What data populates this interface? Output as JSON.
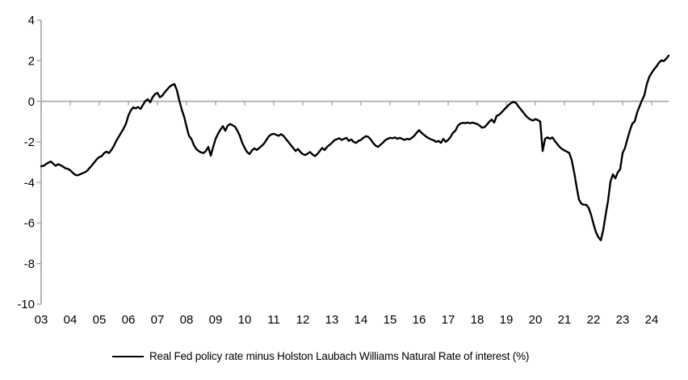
{
  "chart_data": {
    "type": "line",
    "title": "",
    "xlabel": "",
    "ylabel": "",
    "grid": false,
    "legend_position": "bottom",
    "ylim": [
      -10,
      4
    ],
    "y_ticks": [
      4,
      2,
      0,
      -2,
      -4,
      -6,
      -8,
      -10
    ],
    "y_tick_labels": [
      "4",
      "2",
      "0",
      "-2",
      "-4",
      "-6",
      "-8",
      "-10"
    ],
    "x_tick_years": [
      2003,
      2004,
      2005,
      2006,
      2007,
      2008,
      2009,
      2010,
      2011,
      2012,
      2013,
      2014,
      2015,
      2016,
      2017,
      2018,
      2019,
      2020,
      2021,
      2022,
      2023,
      2024
    ],
    "x_tick_labels": [
      "03",
      "04",
      "05",
      "06",
      "07",
      "08",
      "09",
      "10",
      "11",
      "12",
      "13",
      "14",
      "15",
      "16",
      "17",
      "18",
      "19",
      "20",
      "21",
      "22",
      "23",
      "24"
    ],
    "zero_axis_line": true,
    "series": [
      {
        "name": "Real Fed policy rate minus Holston Laubach Williams Natural Rate of interest (%)",
        "color": "#000000",
        "x_start": 2003.0,
        "x_step": 0.0833333,
        "values": [
          -3.2,
          -3.18,
          -3.1,
          -3.02,
          -2.97,
          -3.08,
          -3.18,
          -3.1,
          -3.15,
          -3.22,
          -3.3,
          -3.33,
          -3.4,
          -3.52,
          -3.62,
          -3.65,
          -3.6,
          -3.55,
          -3.5,
          -3.42,
          -3.28,
          -3.15,
          -3.0,
          -2.85,
          -2.75,
          -2.7,
          -2.55,
          -2.48,
          -2.55,
          -2.4,
          -2.2,
          -1.95,
          -1.75,
          -1.55,
          -1.35,
          -1.1,
          -0.7,
          -0.45,
          -0.3,
          -0.35,
          -0.28,
          -0.38,
          -0.18,
          0.02,
          0.1,
          -0.05,
          0.2,
          0.35,
          0.42,
          0.2,
          0.28,
          0.45,
          0.58,
          0.72,
          0.8,
          0.85,
          0.55,
          0.05,
          -0.4,
          -0.75,
          -1.25,
          -1.7,
          -1.85,
          -2.15,
          -2.35,
          -2.45,
          -2.52,
          -2.55,
          -2.45,
          -2.25,
          -2.68,
          -2.25,
          -1.85,
          -1.6,
          -1.4,
          -1.22,
          -1.45,
          -1.2,
          -1.12,
          -1.18,
          -1.25,
          -1.45,
          -1.7,
          -2.05,
          -2.3,
          -2.5,
          -2.6,
          -2.42,
          -2.32,
          -2.4,
          -2.3,
          -2.2,
          -2.08,
          -1.9,
          -1.72,
          -1.63,
          -1.6,
          -1.65,
          -1.7,
          -1.62,
          -1.7,
          -1.85,
          -2.0,
          -2.15,
          -2.3,
          -2.45,
          -2.35,
          -2.5,
          -2.6,
          -2.65,
          -2.58,
          -2.5,
          -2.62,
          -2.7,
          -2.6,
          -2.45,
          -2.3,
          -2.4,
          -2.25,
          -2.15,
          -2.05,
          -1.92,
          -1.87,
          -1.82,
          -1.9,
          -1.85,
          -1.8,
          -1.95,
          -1.88,
          -2.0,
          -2.05,
          -1.95,
          -1.9,
          -1.8,
          -1.72,
          -1.75,
          -1.88,
          -2.05,
          -2.18,
          -2.25,
          -2.15,
          -2.05,
          -1.92,
          -1.85,
          -1.8,
          -1.82,
          -1.78,
          -1.85,
          -1.8,
          -1.85,
          -1.9,
          -1.85,
          -1.88,
          -1.8,
          -1.7,
          -1.55,
          -1.42,
          -1.55,
          -1.65,
          -1.75,
          -1.82,
          -1.88,
          -1.92,
          -2.0,
          -1.95,
          -2.05,
          -1.85,
          -2.0,
          -1.9,
          -1.75,
          -1.55,
          -1.45,
          -1.2,
          -1.1,
          -1.06,
          -1.08,
          -1.05,
          -1.08,
          -1.05,
          -1.08,
          -1.12,
          -1.2,
          -1.3,
          -1.27,
          -1.15,
          -1.0,
          -0.9,
          -1.05,
          -0.72,
          -0.67,
          -0.55,
          -0.42,
          -0.3,
          -0.18,
          -0.08,
          -0.03,
          -0.08,
          -0.25,
          -0.4,
          -0.55,
          -0.7,
          -0.82,
          -0.9,
          -0.95,
          -0.88,
          -0.92,
          -1.0,
          -2.45,
          -1.85,
          -1.78,
          -1.85,
          -1.78,
          -1.95,
          -2.1,
          -2.25,
          -2.35,
          -2.42,
          -2.48,
          -2.55,
          -2.9,
          -3.5,
          -4.2,
          -4.85,
          -5.05,
          -5.1,
          -5.1,
          -5.25,
          -5.6,
          -6.05,
          -6.45,
          -6.7,
          -6.85,
          -6.35,
          -5.6,
          -4.9,
          -3.95,
          -3.6,
          -3.8,
          -3.5,
          -3.35,
          -2.55,
          -2.3,
          -1.85,
          -1.45,
          -1.1,
          -1.0,
          -0.55,
          -0.25,
          0.05,
          0.3,
          0.85,
          1.2,
          1.4,
          1.58,
          1.72,
          1.9,
          2.02,
          1.98,
          2.1,
          2.25
        ]
      }
    ]
  },
  "legend": {
    "label": "Real Fed policy rate minus Holston Laubach Williams Natural Rate of interest (%)"
  },
  "colors": {
    "line": "#000000",
    "axis": "#a6a6a6",
    "text": "#000000",
    "background": "#ffffff"
  }
}
